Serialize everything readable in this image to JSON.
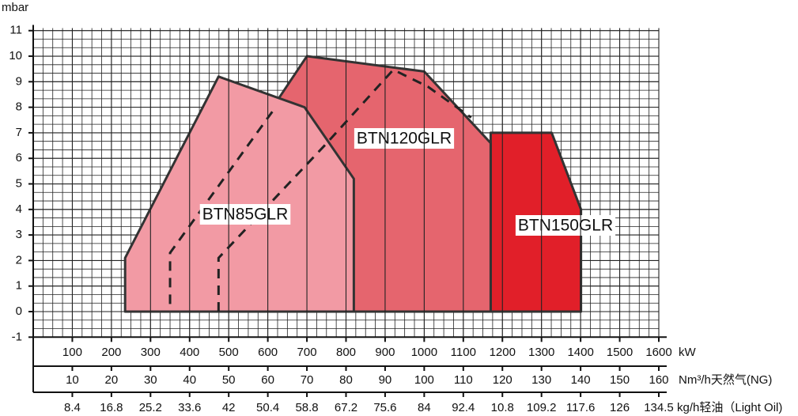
{
  "chart_data": {
    "type": "area",
    "y_label": "mbar",
    "x_unit": "kW",
    "x2_unit": "Nm³/h天然气(NG)",
    "x3_unit": "kg/h轻油（Light Oil)",
    "xlim": [
      0,
      1600
    ],
    "xticks": [
      100,
      200,
      300,
      400,
      500,
      600,
      700,
      800,
      900,
      1000,
      1100,
      1200,
      1300,
      1400,
      1500,
      1600
    ],
    "x2ticks": [
      10,
      20,
      30,
      40,
      50,
      60,
      70,
      80,
      90,
      100,
      110,
      120,
      130,
      140,
      150,
      160
    ],
    "x3ticks": [
      8.4,
      16.8,
      25.2,
      33.6,
      42,
      50.4,
      58.8,
      67.2,
      75.6,
      84,
      92.4,
      10.8,
      109.2,
      117.6,
      126,
      134.5
    ],
    "ylim": [
      -1,
      11.1
    ],
    "yticks": [
      -1,
      0,
      1,
      2,
      3,
      4,
      5,
      6,
      7,
      8,
      9,
      10,
      11
    ],
    "grid": true,
    "series": [
      {
        "name": "BTN85GLR",
        "color": "#f29aa4",
        "x": [
          235,
          235,
          474,
          694,
          820,
          820
        ],
        "values": [
          0,
          2.1,
          9.2,
          8.0,
          5.2,
          0
        ]
      },
      {
        "name": "BTN120GLR",
        "color": "#e5656e",
        "x": [
          474,
          474,
          628,
          700,
          1000,
          1170,
          1170
        ],
        "values": [
          0,
          9.2,
          8.35,
          10,
          9.4,
          6.6,
          0
        ]
      },
      {
        "name": "BTN150GLR",
        "color": "#e11f29",
        "x": [
          1170,
          1170,
          1326,
          1401,
          1401
        ],
        "values": [
          0,
          7,
          7,
          4,
          0
        ]
      }
    ],
    "curves": [
      {
        "x": [
          350,
          350,
          613
        ],
        "values": [
          0.3,
          2.3,
          7.86
        ]
      },
      {
        "x": [
          474,
          474,
          745,
          921,
          1010,
          1120
        ],
        "values": [
          0,
          2.1,
          6.5,
          9.47,
          8.8,
          7.6
        ]
      }
    ]
  }
}
